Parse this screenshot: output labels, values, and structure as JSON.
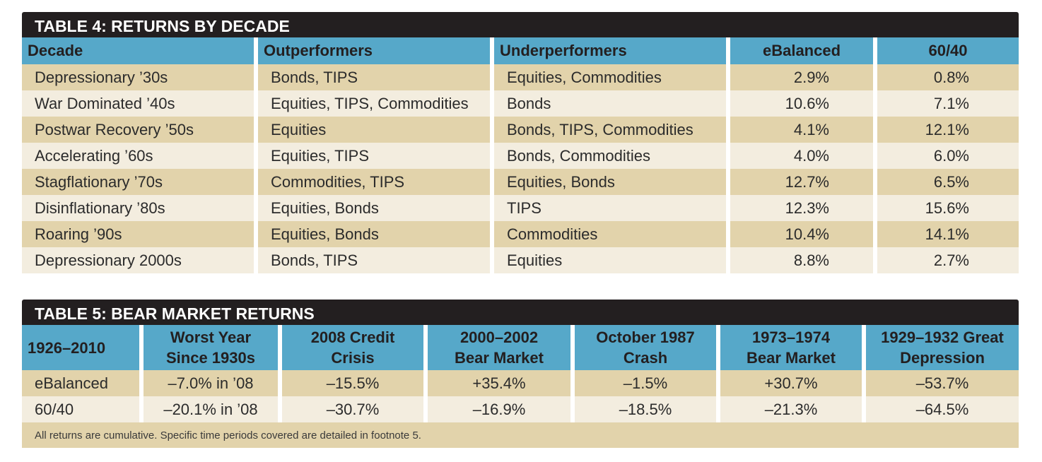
{
  "table4": {
    "title": "TABLE 4: RETURNS BY DECADE",
    "headers": [
      "Decade",
      "Outperformers",
      "Underperformers",
      "eBalanced",
      "60/40"
    ],
    "rows": [
      [
        "Depressionary ’30s",
        "Bonds, TIPS",
        "Equities, Commodities",
        "2.9%",
        "0.8%"
      ],
      [
        "War Dominated ’40s",
        "Equities, TIPS, Commodities",
        "Bonds",
        "10.6%",
        "7.1%"
      ],
      [
        "Postwar Recovery ’50s",
        "Equities",
        "Bonds, TIPS, Commodities",
        "4.1%",
        "12.1%"
      ],
      [
        "Accelerating ’60s",
        "Equities, TIPS",
        "Bonds, Commodities",
        "4.0%",
        "6.0%"
      ],
      [
        "Stagflationary ’70s",
        "Commodities, TIPS",
        "Equities, Bonds",
        "12.7%",
        "6.5%"
      ],
      [
        "Disinflationary ’80s",
        "Equities, Bonds",
        "TIPS",
        "12.3%",
        "15.6%"
      ],
      [
        "Roaring ’90s",
        "Equities, Bonds",
        "Commodities",
        "10.4%",
        "14.1%"
      ],
      [
        "Depressionary 2000s",
        "Bonds, TIPS",
        "Equities",
        "8.8%",
        "2.7%"
      ]
    ]
  },
  "table5": {
    "title": "TABLE 5: BEAR MARKET RETURNS",
    "headers": [
      {
        "line1": "1926–2010",
        "line2": ""
      },
      {
        "line1": "Worst Year",
        "line2": "Since 1930s"
      },
      {
        "line1": "2008 Credit",
        "line2": "Crisis"
      },
      {
        "line1": "2000–2002",
        "line2": "Bear Market"
      },
      {
        "line1": "October 1987",
        "line2": "Crash"
      },
      {
        "line1": "1973–1974",
        "line2": "Bear Market"
      },
      {
        "line1": "1929–1932 Great",
        "line2": "Depression"
      }
    ],
    "rows": [
      [
        "eBalanced",
        "–7.0% in ’08",
        "–15.5%",
        "+35.4%",
        "–1.5%",
        "+30.7%",
        "–53.7%"
      ],
      [
        "60/40",
        "–20.1% in ’08",
        "–30.7%",
        "–16.9%",
        "–18.5%",
        "–21.3%",
        "–64.5%"
      ]
    ],
    "footnote": "All returns are cumulative. Specific time periods covered are detailed in footnote 5."
  },
  "colors": {
    "title_bg": "#231f20",
    "header_bg": "#56a8c9",
    "row_tan": "#e2d3ab",
    "row_light": "#f3eddf"
  }
}
